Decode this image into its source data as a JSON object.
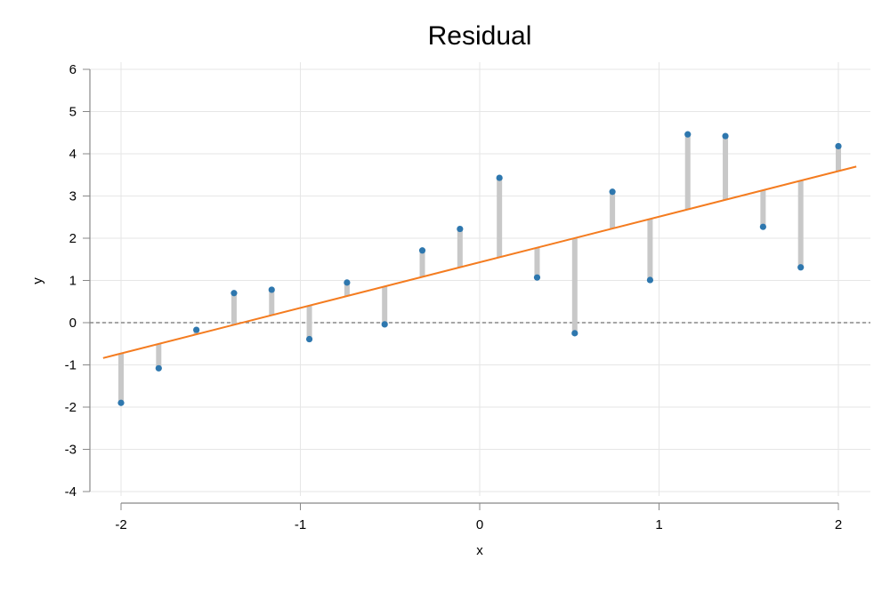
{
  "chart_data": {
    "type": "scatter",
    "title": "Residual",
    "xlabel": "x",
    "ylabel": "y",
    "xlim": [
      -2.17,
      2.17
    ],
    "ylim": [
      -4,
      6
    ],
    "xticks": [
      -2,
      -1,
      0,
      1,
      2
    ],
    "yticks": [
      -4,
      -3,
      -2,
      -1,
      0,
      1,
      2,
      3,
      4,
      5,
      6
    ],
    "grid": true,
    "legend": "none",
    "zero_line": 0,
    "colors": {
      "points": "#2e77ae",
      "fit_line": "#f47c20",
      "residuals": "#c8c8c8",
      "zero_line": "#888888",
      "grid": "#e6e6e6",
      "axis": "#888888"
    },
    "fit_line": {
      "slope": 1.08,
      "intercept": 1.43,
      "x_range": [
        -2.1,
        2.1
      ]
    },
    "points": {
      "x": [
        -2.0,
        -1.79,
        -1.58,
        -1.37,
        -1.16,
        -0.95,
        -0.74,
        -0.53,
        -0.32,
        -0.11,
        0.11,
        0.32,
        0.53,
        0.74,
        0.95,
        1.16,
        1.37,
        1.58,
        1.79,
        2.0
      ],
      "y": [
        -1.9,
        -1.08,
        -0.17,
        0.7,
        0.78,
        -0.39,
        0.95,
        -0.04,
        1.71,
        2.22,
        3.43,
        1.07,
        -0.25,
        3.1,
        1.01,
        4.46,
        4.42,
        2.27,
        1.31,
        4.18
      ]
    }
  }
}
